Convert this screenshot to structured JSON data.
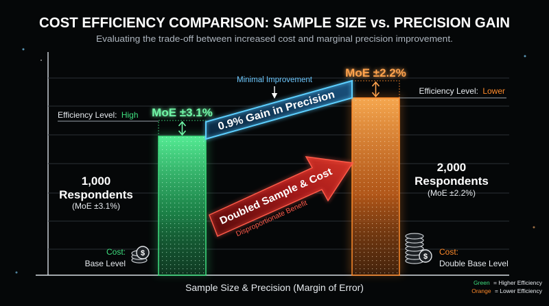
{
  "title": "COST EFFICIENCY COMPARISON: SAMPLE SIZE vs. PRECISION GAIN",
  "subtitle": "Evaluating the trade-off between increased cost and marginal precision improvement.",
  "colors": {
    "background": "#050708",
    "green": "#3ee07f",
    "orange": "#ff8a2a",
    "blue": "#53c4ff",
    "red": "#e02a2a",
    "text": "#ffffff",
    "muted": "#c9cfd6"
  },
  "chart_data": {
    "type": "bar",
    "xlabel": "Sample Size & Precision (Margin of Error)",
    "categories": [
      "1,000 Respondents",
      "2,000 Respondents"
    ],
    "series": [
      {
        "values": [
          3.1,
          2.2
        ]
      }
    ],
    "bar_colors": [
      "#3ee07f",
      "#ff8a2a"
    ],
    "ylim": [
      0,
      4.2
    ],
    "bars": [
      {
        "moe_label": "MoE ±3.1%",
        "efficiency_prefix": "Efficiency Level:",
        "efficiency_value": "High",
        "count_label": "1,000",
        "unit_label": "Respondents",
        "moe_paren": "(MoE ±3.1%)",
        "cost_label": "Cost:",
        "cost_value": "Base Level"
      },
      {
        "moe_label": "MoE ±2.2%",
        "efficiency_prefix": "Efficiency Level:",
        "efficiency_value": "Lower",
        "count_label": "2,000",
        "unit_label": "Respondents",
        "moe_paren": "(MoE ±2.2%)",
        "cost_label": "Cost:",
        "cost_value": "Double Base Level"
      }
    ],
    "annotations": {
      "gain_label": "0.9% Gain in Precision",
      "minimal_label": "Minimal Improvement",
      "doubled_label": "Doubled Sample & Cost",
      "benefit_label": "Disproportionate Benefit"
    },
    "legend": {
      "position": "bottom-right",
      "items": [
        {
          "key": "Green",
          "text": "= Higher Efficiency",
          "color": "#3ee07f"
        },
        {
          "key": "Orange",
          "text": "= Lower Efficiency",
          "color": "#ff8a2a"
        }
      ]
    }
  }
}
